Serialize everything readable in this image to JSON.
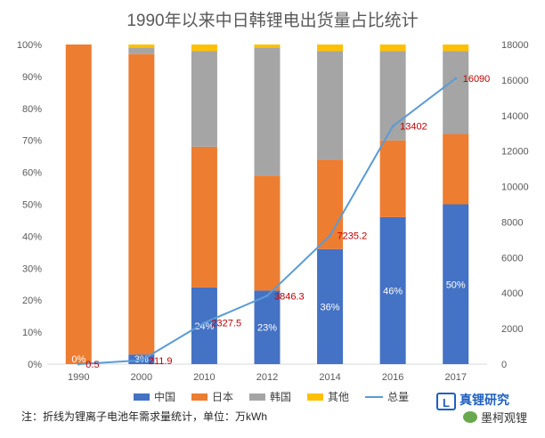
{
  "title": "1990年以来中日韩锂电出货量占比统计",
  "note": "注：折线为锂离子电池年需求量统计，单位：万kWh",
  "logo": {
    "brand": "真锂研究",
    "wechat": "墨柯观锂"
  },
  "colors": {
    "china": "#4472c4",
    "japan": "#ed7d31",
    "korea": "#a5a5a5",
    "other": "#ffc000",
    "total": "#5b9bd5",
    "total_label": "#c00000"
  },
  "chart_data": {
    "type": "bar",
    "stacked": true,
    "percent": true,
    "categories": [
      "1990",
      "2000",
      "2010",
      "2012",
      "2014",
      "2016",
      "2017"
    ],
    "series": [
      {
        "name": "中国",
        "values": [
          0,
          3,
          24,
          23,
          36,
          46,
          50
        ],
        "labels": [
          "0%",
          "3%",
          "24%",
          "23%",
          "36%",
          "46%",
          "50%"
        ]
      },
      {
        "name": "日本",
        "values": [
          100,
          94,
          44,
          36,
          28,
          24,
          22
        ]
      },
      {
        "name": "韩国",
        "values": [
          0,
          2,
          30,
          40,
          34,
          28,
          26
        ]
      },
      {
        "name": "其他",
        "values": [
          0,
          1,
          2,
          1,
          2,
          2,
          2
        ]
      }
    ],
    "line": {
      "name": "总量",
      "values": [
        0.5,
        211.9,
        2327.5,
        3846.3,
        7235.2,
        13402,
        16090
      ],
      "labels": [
        "0.5",
        "211.9",
        "2327.5",
        "3846.3",
        "7235.2",
        "13402",
        "16090"
      ]
    },
    "y_left": {
      "ticks": [
        "0%",
        "10%",
        "20%",
        "30%",
        "40%",
        "50%",
        "60%",
        "70%",
        "80%",
        "90%",
        "100%"
      ],
      "range": [
        0,
        100
      ]
    },
    "y_right": {
      "ticks": [
        "0",
        "2000",
        "4000",
        "6000",
        "8000",
        "10000",
        "12000",
        "14000",
        "16000",
        "18000"
      ],
      "range": [
        0,
        18000
      ]
    },
    "grid": false,
    "legend_position": "bottom"
  }
}
